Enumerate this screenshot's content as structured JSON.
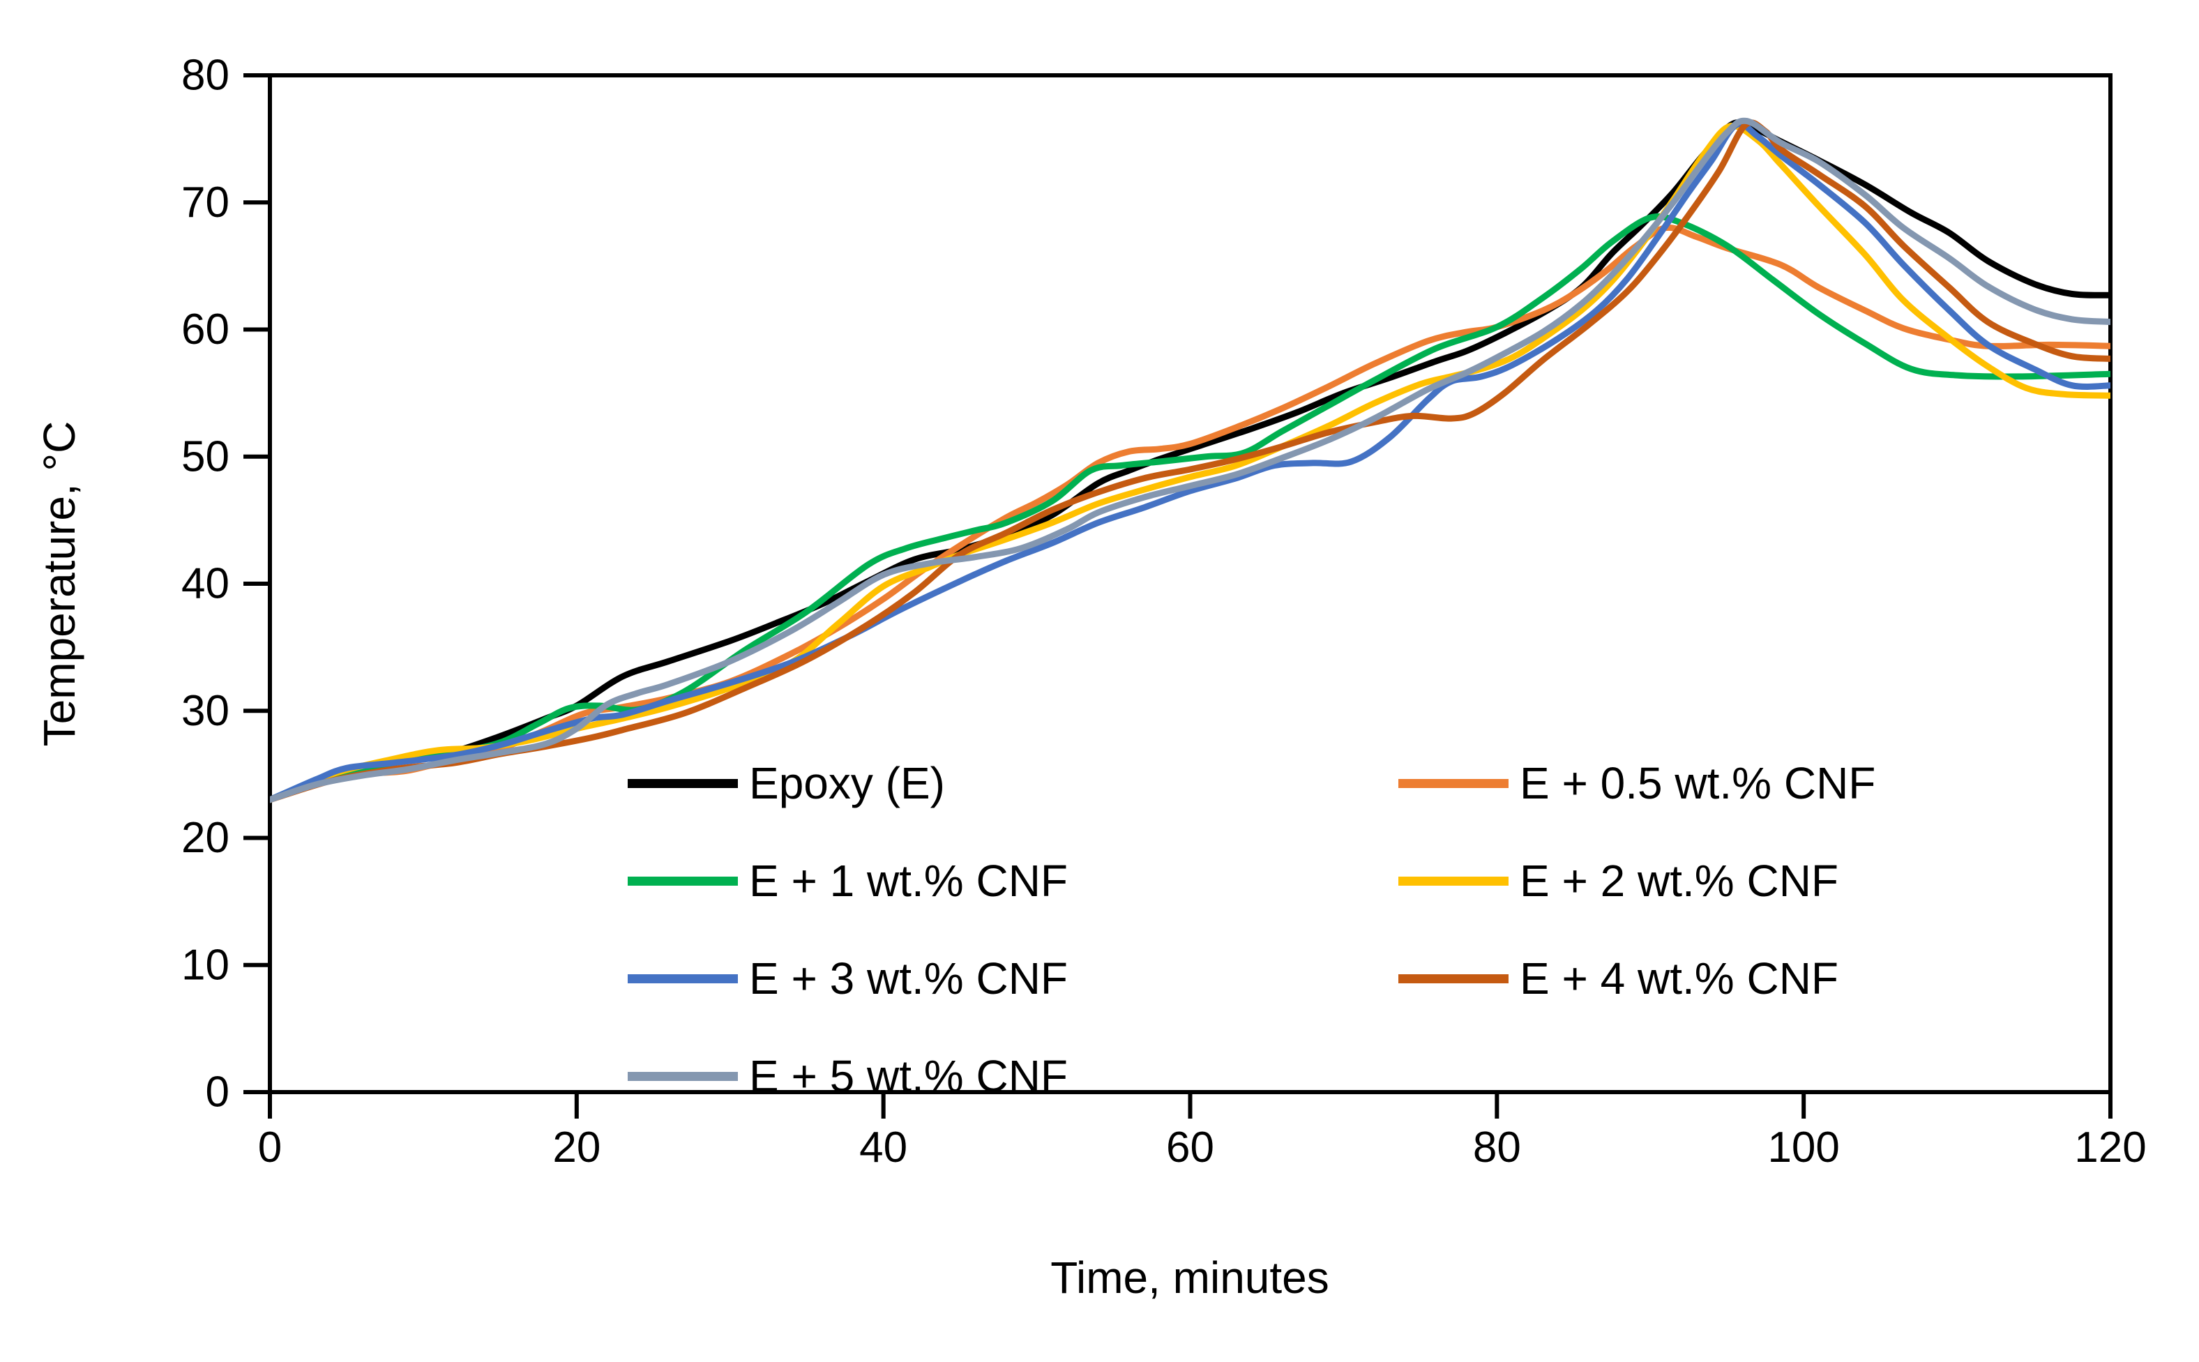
{
  "figure": {
    "background": "#ffffff",
    "frame_color": "#000000"
  },
  "chart_data": {
    "type": "line",
    "title": "",
    "xlabel": "Time, minutes",
    "ylabel": "Temperature, °C",
    "xlim": [
      0,
      120
    ],
    "ylim": [
      0,
      80
    ],
    "xticks": [
      0,
      20,
      40,
      60,
      80,
      100,
      120
    ],
    "yticks": [
      0,
      10,
      20,
      30,
      40,
      50,
      60,
      70,
      80
    ],
    "grid": false,
    "legend_position": "inside-bottom-two-columns",
    "series": [
      {
        "name": "Epoxy (E)",
        "color": "#000000",
        "points": [
          [
            0,
            23
          ],
          [
            3,
            24.4
          ],
          [
            6,
            25.4
          ],
          [
            9,
            26.1
          ],
          [
            12,
            26.8
          ],
          [
            15,
            28
          ],
          [
            18,
            29.4
          ],
          [
            20,
            30.4
          ],
          [
            23,
            32.7
          ],
          [
            26,
            33.9
          ],
          [
            30,
            35.5
          ],
          [
            33,
            36.9
          ],
          [
            36,
            38.4
          ],
          [
            39,
            40.2
          ],
          [
            42,
            41.9
          ],
          [
            45,
            42.7
          ],
          [
            48,
            43.8
          ],
          [
            51,
            45.4
          ],
          [
            54,
            47.9
          ],
          [
            56,
            48.9
          ],
          [
            58,
            49.8
          ],
          [
            61,
            51
          ],
          [
            64,
            52.2
          ],
          [
            67,
            53.5
          ],
          [
            70,
            55
          ],
          [
            73,
            56.2
          ],
          [
            76,
            57.5
          ],
          [
            78,
            58.3
          ],
          [
            80,
            59.4
          ],
          [
            83,
            61.3
          ],
          [
            85.5,
            63.3
          ],
          [
            87.5,
            66
          ],
          [
            89.5,
            68.3
          ],
          [
            91.5,
            70.8
          ],
          [
            93.5,
            73.8
          ],
          [
            95.4,
            76.2
          ],
          [
            97,
            75.7
          ],
          [
            98.5,
            74.8
          ],
          [
            101,
            73.3
          ],
          [
            104,
            71.4
          ],
          [
            107,
            69.2
          ],
          [
            109.5,
            67.6
          ],
          [
            112,
            65.4
          ],
          [
            115,
            63.6
          ],
          [
            117.5,
            62.8
          ],
          [
            120,
            62.7
          ]
        ]
      },
      {
        "name": "E + 0.5 wt.% CNF",
        "color": "#ED7D31",
        "points": [
          [
            0,
            23
          ],
          [
            3,
            24.3
          ],
          [
            6,
            25
          ],
          [
            9,
            25.3
          ],
          [
            12,
            26.2
          ],
          [
            15,
            27
          ],
          [
            18,
            28.5
          ],
          [
            20.5,
            29.8
          ],
          [
            23,
            30.3
          ],
          [
            26,
            31
          ],
          [
            30,
            32.3
          ],
          [
            34,
            34.5
          ],
          [
            37,
            36.5
          ],
          [
            40,
            38.8
          ],
          [
            42.5,
            41
          ],
          [
            45,
            43
          ],
          [
            48,
            45.2
          ],
          [
            50,
            46.4
          ],
          [
            52,
            47.8
          ],
          [
            54,
            49.5
          ],
          [
            56,
            50.4
          ],
          [
            58,
            50.6
          ],
          [
            60,
            51
          ],
          [
            63,
            52.3
          ],
          [
            66,
            53.8
          ],
          [
            69,
            55.5
          ],
          [
            72,
            57.3
          ],
          [
            75.5,
            59.1
          ],
          [
            78,
            59.8
          ],
          [
            80,
            60.2
          ],
          [
            83,
            61.5
          ],
          [
            85,
            62.8
          ],
          [
            87,
            64.5
          ],
          [
            89,
            66.5
          ],
          [
            91,
            68
          ],
          [
            93,
            67.3
          ],
          [
            95,
            66.4
          ],
          [
            98.5,
            65.1
          ],
          [
            101,
            63.3
          ],
          [
            104,
            61.5
          ],
          [
            106.5,
            60.1
          ],
          [
            109.5,
            59.2
          ],
          [
            112,
            58.7
          ],
          [
            116,
            58.8
          ],
          [
            120,
            58.7
          ]
        ]
      },
      {
        "name": "E + 1 wt.% CNF",
        "color": "#00B050",
        "points": [
          [
            0,
            23
          ],
          [
            3,
            24.5
          ],
          [
            6,
            25.4
          ],
          [
            9,
            26.1
          ],
          [
            12,
            26.7
          ],
          [
            15,
            27.5
          ],
          [
            17.5,
            29
          ],
          [
            19.5,
            30.2
          ],
          [
            21.5,
            30.4
          ],
          [
            24,
            30.1
          ],
          [
            27,
            31.5
          ],
          [
            31,
            34.8
          ],
          [
            35,
            37.8
          ],
          [
            39,
            41.5
          ],
          [
            41.5,
            42.8
          ],
          [
            44,
            43.6
          ],
          [
            46,
            44.2
          ],
          [
            48,
            44.8
          ],
          [
            51,
            46.5
          ],
          [
            53.5,
            48.9
          ],
          [
            55.5,
            49.3
          ],
          [
            58,
            49.6
          ],
          [
            61,
            50
          ],
          [
            63.5,
            50.3
          ],
          [
            66,
            52
          ],
          [
            69,
            54
          ],
          [
            72,
            56
          ],
          [
            76,
            58.5
          ],
          [
            80,
            60.2
          ],
          [
            83,
            62.5
          ],
          [
            85.5,
            64.8
          ],
          [
            87.5,
            66.9
          ],
          [
            90,
            68.8
          ],
          [
            92,
            68.4
          ],
          [
            95,
            66.6
          ],
          [
            98,
            63.9
          ],
          [
            101,
            61.2
          ],
          [
            104,
            58.9
          ],
          [
            107,
            56.9
          ],
          [
            110,
            56.4
          ],
          [
            114,
            56.3
          ],
          [
            120,
            56.5
          ]
        ]
      },
      {
        "name": "E + 2 wt.% CNF",
        "color": "#FFC000",
        "points": [
          [
            0,
            23
          ],
          [
            4,
            25
          ],
          [
            8,
            26.2
          ],
          [
            11,
            26.9
          ],
          [
            14,
            27.1
          ],
          [
            17,
            27.7
          ],
          [
            20,
            28.6
          ],
          [
            23,
            29.4
          ],
          [
            26,
            30.3
          ],
          [
            30,
            31.8
          ],
          [
            34,
            33.8
          ],
          [
            37,
            36.8
          ],
          [
            40,
            39.8
          ],
          [
            43,
            41.3
          ],
          [
            45,
            42.3
          ],
          [
            48,
            43.5
          ],
          [
            51,
            44.8
          ],
          [
            54,
            46.3
          ],
          [
            57,
            47.4
          ],
          [
            60,
            48.4
          ],
          [
            63,
            49.3
          ],
          [
            66,
            50.8
          ],
          [
            69,
            52.4
          ],
          [
            72,
            54.2
          ],
          [
            75,
            55.7
          ],
          [
            77,
            56.3
          ],
          [
            79,
            56.9
          ],
          [
            81,
            57.8
          ],
          [
            83,
            59.3
          ],
          [
            85.5,
            61.5
          ],
          [
            87.5,
            63.8
          ],
          [
            89.5,
            66.8
          ],
          [
            91.5,
            70.2
          ],
          [
            93.5,
            73.8
          ],
          [
            95.2,
            76
          ],
          [
            97,
            74.9
          ],
          [
            98.5,
            73
          ],
          [
            101,
            69.7
          ],
          [
            104,
            65.9
          ],
          [
            106.5,
            62.3
          ],
          [
            109.5,
            59.3
          ],
          [
            112,
            57.1
          ],
          [
            114.5,
            55.4
          ],
          [
            117,
            54.9
          ],
          [
            120,
            54.8
          ]
        ]
      },
      {
        "name": "E + 3 wt.% CNF",
        "color": "#4472C4",
        "points": [
          [
            0,
            23
          ],
          [
            3,
            24.6
          ],
          [
            5,
            25.5
          ],
          [
            8,
            25.9
          ],
          [
            12,
            26.5
          ],
          [
            15,
            27.3
          ],
          [
            18,
            28.4
          ],
          [
            21,
            29.4
          ],
          [
            23,
            29.7
          ],
          [
            26,
            30.8
          ],
          [
            30,
            32.2
          ],
          [
            34,
            33.8
          ],
          [
            38,
            36
          ],
          [
            41,
            37.9
          ],
          [
            45,
            40.2
          ],
          [
            48,
            41.8
          ],
          [
            51,
            43.2
          ],
          [
            54,
            44.8
          ],
          [
            57,
            46
          ],
          [
            60,
            47.3
          ],
          [
            63,
            48.3
          ],
          [
            65.5,
            49.3
          ],
          [
            68,
            49.5
          ],
          [
            70.5,
            49.6
          ],
          [
            73,
            51.5
          ],
          [
            75.5,
            54.5
          ],
          [
            77,
            55.9
          ],
          [
            79,
            56.3
          ],
          [
            81,
            57.2
          ],
          [
            84,
            59.3
          ],
          [
            86.5,
            61.5
          ],
          [
            88.5,
            64
          ],
          [
            90.5,
            67.3
          ],
          [
            92.5,
            70.8
          ],
          [
            94,
            73.3
          ],
          [
            95.6,
            76.1
          ],
          [
            97,
            75.2
          ],
          [
            98.5,
            73.7
          ],
          [
            101,
            71.4
          ],
          [
            104,
            68.4
          ],
          [
            106.5,
            65.1
          ],
          [
            109.5,
            61.5
          ],
          [
            112,
            58.8
          ],
          [
            115,
            56.9
          ],
          [
            117.5,
            55.6
          ],
          [
            120,
            55.6
          ]
        ]
      },
      {
        "name": "E + 4 wt.% CNF",
        "color": "#C55A11",
        "points": [
          [
            0,
            23
          ],
          [
            4,
            24.5
          ],
          [
            8,
            25.4
          ],
          [
            12,
            25.9
          ],
          [
            15,
            26.6
          ],
          [
            18,
            27.2
          ],
          [
            21,
            27.9
          ],
          [
            23,
            28.5
          ],
          [
            27,
            29.8
          ],
          [
            31,
            31.8
          ],
          [
            35,
            34
          ],
          [
            39,
            36.8
          ],
          [
            42,
            39.3
          ],
          [
            45,
            42.3
          ],
          [
            48,
            44
          ],
          [
            51,
            45.8
          ],
          [
            54,
            47.2
          ],
          [
            57,
            48.3
          ],
          [
            60,
            49
          ],
          [
            63,
            49.8
          ],
          [
            66,
            50.8
          ],
          [
            69,
            51.9
          ],
          [
            72,
            52.7
          ],
          [
            74.5,
            53.2
          ],
          [
            77,
            53
          ],
          [
            78.5,
            53.4
          ],
          [
            80.5,
            55
          ],
          [
            83,
            57.6
          ],
          [
            86,
            60.4
          ],
          [
            88.5,
            63
          ],
          [
            90.5,
            65.8
          ],
          [
            92.5,
            69
          ],
          [
            94.5,
            72.5
          ],
          [
            96.2,
            76.1
          ],
          [
            97.5,
            75.6
          ],
          [
            98.5,
            74.2
          ],
          [
            101,
            72.2
          ],
          [
            104,
            69.7
          ],
          [
            106.5,
            66.6
          ],
          [
            109.5,
            63.3
          ],
          [
            112,
            60.6
          ],
          [
            115,
            58.9
          ],
          [
            117.5,
            57.9
          ],
          [
            120,
            57.7
          ]
        ]
      },
      {
        "name": "E + 5 wt.% CNF",
        "color": "#8497B0",
        "points": [
          [
            0,
            23
          ],
          [
            3,
            24.2
          ],
          [
            6,
            24.9
          ],
          [
            9,
            25.4
          ],
          [
            12,
            26.1
          ],
          [
            15,
            26.7
          ],
          [
            18,
            27.4
          ],
          [
            20,
            28.6
          ],
          [
            22,
            30.5
          ],
          [
            24,
            31.4
          ],
          [
            26,
            32.1
          ],
          [
            30,
            33.9
          ],
          [
            34,
            36.3
          ],
          [
            37,
            38.5
          ],
          [
            40,
            40.7
          ],
          [
            43,
            41.6
          ],
          [
            46,
            42.1
          ],
          [
            49,
            42.8
          ],
          [
            52,
            44.3
          ],
          [
            54,
            45.6
          ],
          [
            57,
            46.8
          ],
          [
            60,
            47.7
          ],
          [
            63,
            48.6
          ],
          [
            66,
            49.9
          ],
          [
            69,
            51.3
          ],
          [
            72,
            53
          ],
          [
            75.5,
            55.3
          ],
          [
            78,
            56.6
          ],
          [
            80,
            57.8
          ],
          [
            83,
            59.8
          ],
          [
            85.5,
            62
          ],
          [
            87.5,
            64.3
          ],
          [
            89.5,
            67
          ],
          [
            91.5,
            70
          ],
          [
            93.2,
            72.8
          ],
          [
            95,
            75.5
          ],
          [
            96.3,
            76.4
          ],
          [
            98.5,
            74.7
          ],
          [
            101,
            73.2
          ],
          [
            104,
            70.6
          ],
          [
            106.5,
            68
          ],
          [
            109.5,
            65.6
          ],
          [
            112,
            63.4
          ],
          [
            115,
            61.6
          ],
          [
            117.5,
            60.8
          ],
          [
            120,
            60.6
          ]
        ]
      }
    ]
  }
}
